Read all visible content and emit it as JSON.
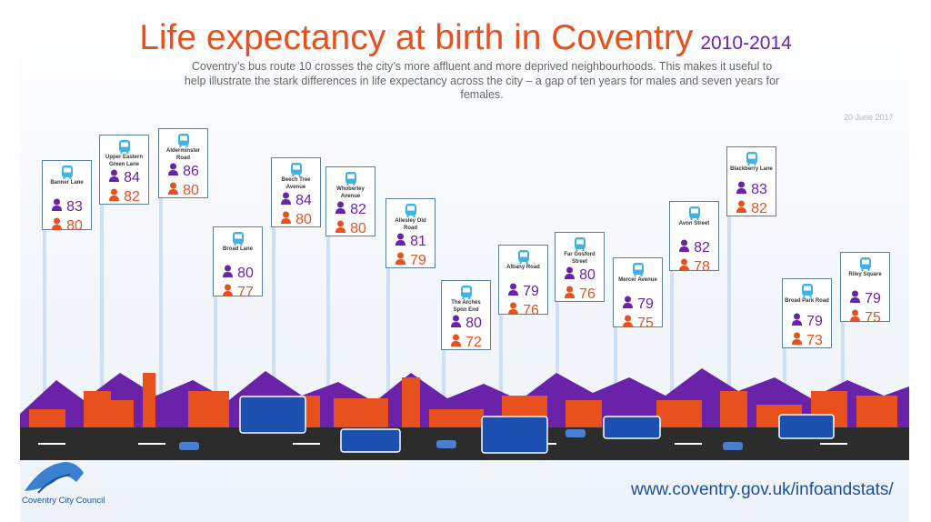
{
  "header": {
    "title": "Life expectancy at birth in Coventry",
    "years": "2010-2014",
    "subtitle": "Coventry’s bus route 10 crosses the city’s more affluent and more deprived neighbourhoods. This makes it useful to help illustrate the stark differences in life expectancy across the city – a gap of ten years for males and seven years for females.",
    "date": "20 June 2017"
  },
  "colors": {
    "title": "#e8501e",
    "female": "#6a22a8",
    "male": "#e8501e",
    "bus_icon": "#3fb3e6",
    "sign_border": "#5b7f9e",
    "url": "#1b4f9c"
  },
  "chart_data": {
    "type": "table",
    "title": "Life expectancy at birth in Coventry",
    "subtitle": "2010-2014",
    "columns": [
      "stop",
      "female",
      "male"
    ],
    "stops": [
      {
        "stop": "Banner Lane",
        "female": 83,
        "male": 80
      },
      {
        "stop": "Upper Eastern Green Lane",
        "female": 84,
        "male": 82
      },
      {
        "stop": "Alderminster Road",
        "female": 86,
        "male": 80
      },
      {
        "stop": "Broad Lane",
        "female": 80,
        "male": 77
      },
      {
        "stop": "Beech Tree Avenue",
        "female": 84,
        "male": 80
      },
      {
        "stop": "Whoberley Avenue",
        "female": 82,
        "male": 80
      },
      {
        "stop": "Allesley Old Road",
        "female": 81,
        "male": 79
      },
      {
        "stop": "The Arches Spon End",
        "female": 80,
        "male": 72
      },
      {
        "stop": "Albany Road",
        "female": 79,
        "male": 76
      },
      {
        "stop": "Far Gosford Street",
        "female": 80,
        "male": 76
      },
      {
        "stop": "Mercer Avenue",
        "female": 79,
        "male": 75
      },
      {
        "stop": "Avon Street",
        "female": 82,
        "male": 78
      },
      {
        "stop": "Blackberry Lane",
        "female": 83,
        "male": 82
      },
      {
        "stop": "Broad Park Road",
        "female": 79,
        "male": 73
      },
      {
        "stop": "Riley Square",
        "female": 79,
        "male": 75
      }
    ]
  },
  "footer": {
    "council": "Coventry City Council",
    "url": "www.coventry.gov.uk/infoandstats/"
  }
}
